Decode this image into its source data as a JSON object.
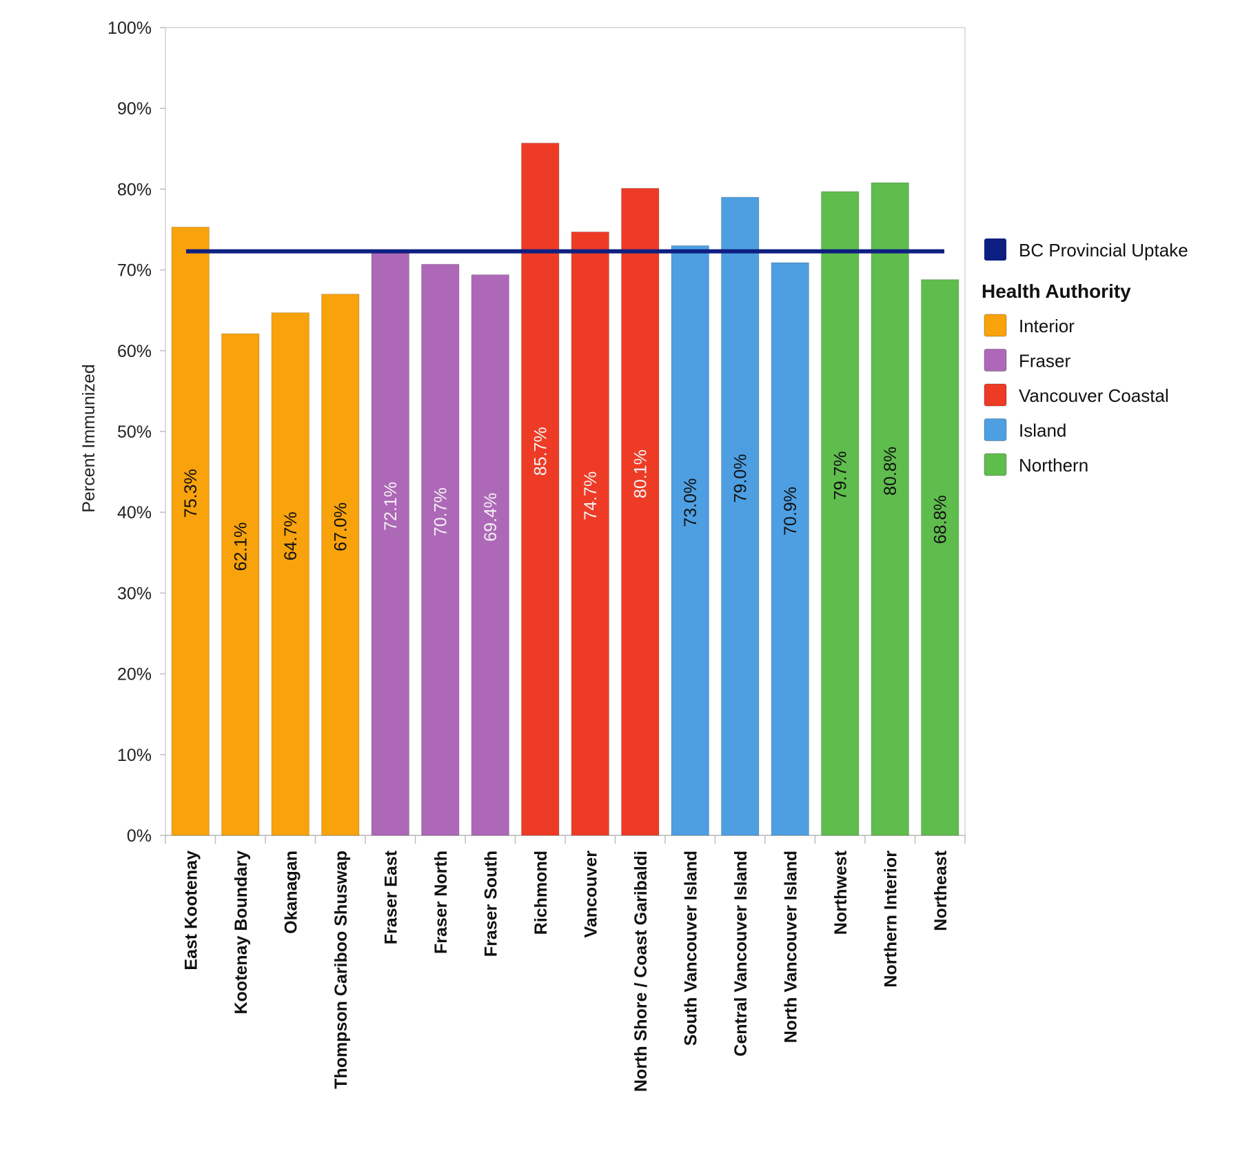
{
  "chart_data": {
    "type": "bar",
    "title": "",
    "xlabel": "",
    "ylabel": "Percent Immunized",
    "ylim": [
      0,
      100
    ],
    "y_ticks": [
      "0%",
      "10%",
      "20%",
      "30%",
      "40%",
      "50%",
      "60%",
      "70%",
      "80%",
      "90%",
      "100%"
    ],
    "grid": false,
    "legend_position": "right",
    "categories": [
      "East Kootenay",
      "Kootenay Boundary",
      "Okanagan",
      "Thompson Cariboo Shuswap",
      "Fraser East",
      "Fraser North",
      "Fraser South",
      "Richmond",
      "Vancouver",
      "North Shore / Coast Garibaldi",
      "South Vancouver Island",
      "Central Vancouver Island",
      "North Vancouver Island",
      "Northwest",
      "Northern Interior",
      "Northeast"
    ],
    "values": [
      75.3,
      62.1,
      64.7,
      67.0,
      72.1,
      70.7,
      69.4,
      85.7,
      74.7,
      80.1,
      73.0,
      79.0,
      70.9,
      79.7,
      80.8,
      68.8
    ],
    "data_labels": [
      "75.3%",
      "62.1%",
      "64.7%",
      "67.0%",
      "72.1%",
      "70.7%",
      "69.4%",
      "85.7%",
      "74.7%",
      "80.1%",
      "73.0%",
      "79.0%",
      "70.9%",
      "79.7%",
      "80.8%",
      "68.8%"
    ],
    "groups": [
      "Interior",
      "Interior",
      "Interior",
      "Interior",
      "Fraser",
      "Fraser",
      "Fraser",
      "Vancouver Coastal",
      "Vancouver Coastal",
      "Vancouver Coastal",
      "Island",
      "Island",
      "Island",
      "Northern",
      "Northern",
      "Northern"
    ],
    "reference_line": {
      "name": "BC Provincial Uptake",
      "value": 72.3,
      "color": "#0d1f80"
    },
    "legend_title": "Health Authority",
    "legend": [
      {
        "name": "Interior",
        "color": "#f8a20c",
        "label_color": "#111111"
      },
      {
        "name": "Fraser",
        "color": "#ae68b8",
        "label_color": "#f2f2f2"
      },
      {
        "name": "Vancouver Coastal",
        "color": "#ee3b26",
        "label_color": "#f2f2f2"
      },
      {
        "name": "Island",
        "color": "#4d9fe2",
        "label_color": "#111111"
      },
      {
        "name": "Northern",
        "color": "#5fbd4d",
        "label_color": "#111111"
      }
    ]
  }
}
